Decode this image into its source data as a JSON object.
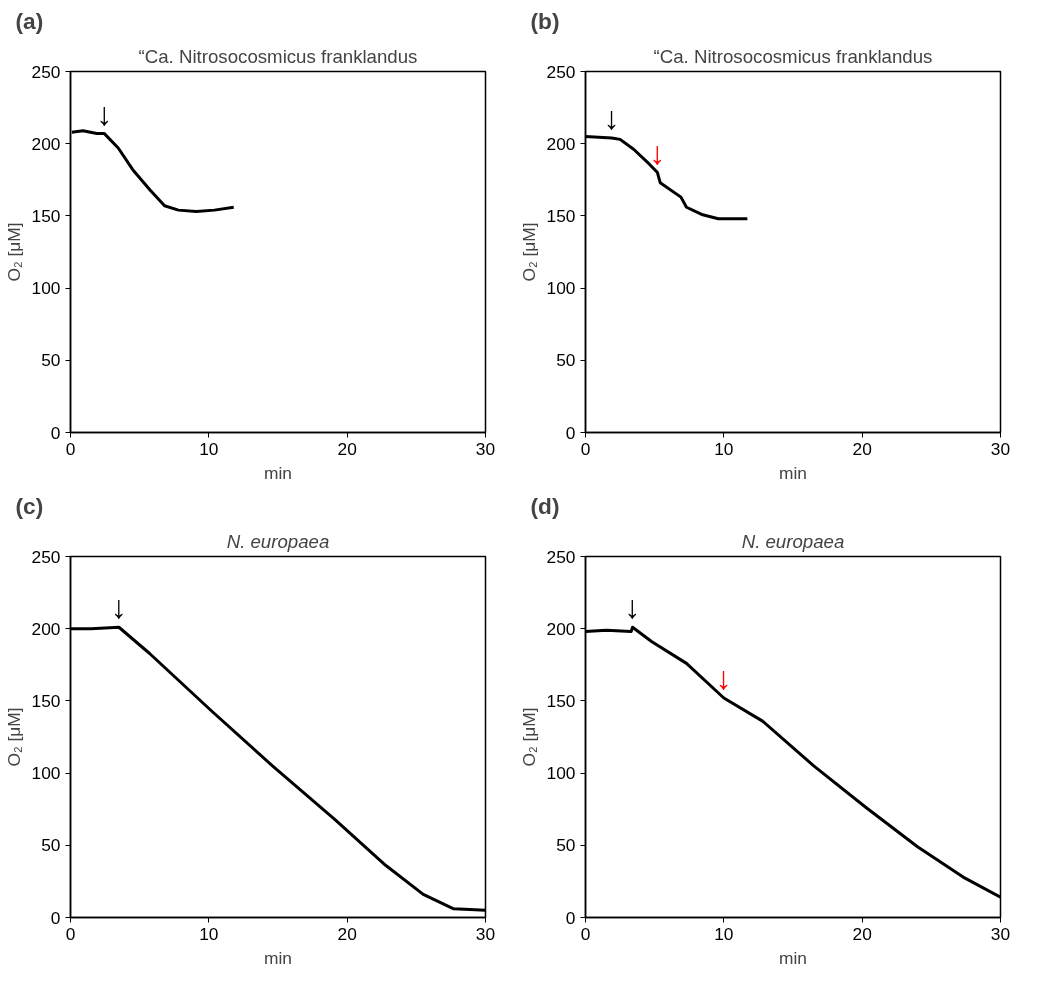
{
  "chart_data": [
    {
      "type": "line",
      "title": "“Ca. Nitrosocosmicus franklandus",
      "xlabel": "min",
      "ylabel": "O₂ [μM]",
      "xlim": [
        0,
        30
      ],
      "ylim": [
        0,
        250
      ],
      "xticks": [
        0,
        10,
        20,
        30
      ],
      "yticks": [
        0,
        50,
        100,
        150,
        200,
        250
      ],
      "grid": false,
      "series": [
        {
          "color": "#000000",
          "x": [
            0.1,
            0.9,
            1.9,
            2.45,
            3.45,
            4.5,
            5.75,
            6.8,
            7.8,
            9.1,
            10.4,
            11.8
          ],
          "values": [
            208,
            209,
            207,
            207,
            197,
            182,
            168,
            157,
            154,
            153,
            154,
            156
          ]
        }
      ],
      "annotations": [
        "(a)",
        {
          "text": "↓",
          "x": 2.45,
          "y": 207
        }
      ]
    },
    {
      "type": "line",
      "title": "“Ca. Nitrosocosmicus franklandus",
      "xlabel": "min",
      "ylabel": "O₂ [μM]",
      "xlim": [
        0,
        30
      ],
      "ylim": [
        0,
        250
      ],
      "xticks": [
        0,
        10,
        20,
        30
      ],
      "yticks": [
        0,
        50,
        100,
        150,
        200,
        250
      ],
      "grid": false,
      "series": [
        {
          "color": "#000000",
          "x": [
            0,
            1.9,
            2.5,
            3.5,
            4.6,
            5.2,
            5.4,
            6.9,
            7.3,
            8.4,
            9.6,
            11.7
          ],
          "values": [
            205,
            204,
            203,
            196,
            186,
            180,
            173,
            163,
            156,
            151,
            148,
            148
          ]
        }
      ],
      "annotations": [
        "(b)",
        {
          "text": "↓",
          "x": 1.9,
          "y": 204
        },
        {
          "text": "↓",
          "x": 5.2,
          "y": 180
        }
      ]
    },
    {
      "type": "line",
      "title": "N. europaea",
      "xlabel": "min",
      "ylabel": "O₂ [μM]",
      "xlim": [
        0,
        30
      ],
      "ylim": [
        0,
        250
      ],
      "xticks": [
        0,
        10,
        20,
        30
      ],
      "yticks": [
        0,
        50,
        100,
        150,
        200,
        250
      ],
      "grid": false,
      "series": [
        {
          "color": "#000000",
          "x": [
            0,
            1.5,
            3.5,
            5.7,
            10.2,
            14.6,
            19.1,
            22.8,
            25.5,
            27.7,
            30
          ],
          "values": [
            200,
            200,
            201,
            183,
            143,
            105,
            68,
            36,
            16,
            6,
            5
          ]
        }
      ],
      "annotations": [
        "(c)",
        {
          "text": "↓",
          "x": 3.5,
          "y": 201
        }
      ]
    },
    {
      "type": "line",
      "title": "N. europaea",
      "xlabel": "min",
      "ylabel": "O₂ [μM]",
      "xlim": [
        0,
        30
      ],
      "ylim": [
        0,
        250
      ],
      "xticks": [
        0,
        10,
        20,
        30
      ],
      "yticks": [
        0,
        50,
        100,
        150,
        200,
        250
      ],
      "grid": false,
      "series": [
        {
          "color": "#000000",
          "x": [
            0,
            1.5,
            3.3,
            3.4,
            4.8,
            7.3,
            10,
            12.8,
            16.5,
            20.3,
            24,
            27.3,
            30
          ],
          "values": [
            198,
            199,
            198,
            201,
            191,
            176,
            152,
            136,
            105,
            76,
            49,
            28,
            14
          ]
        }
      ],
      "annotations": [
        "(d)",
        {
          "text": "↓",
          "x": 3.4,
          "y": 201
        },
        {
          "text": "↓",
          "x": 10,
          "y": 152
        }
      ]
    }
  ]
}
